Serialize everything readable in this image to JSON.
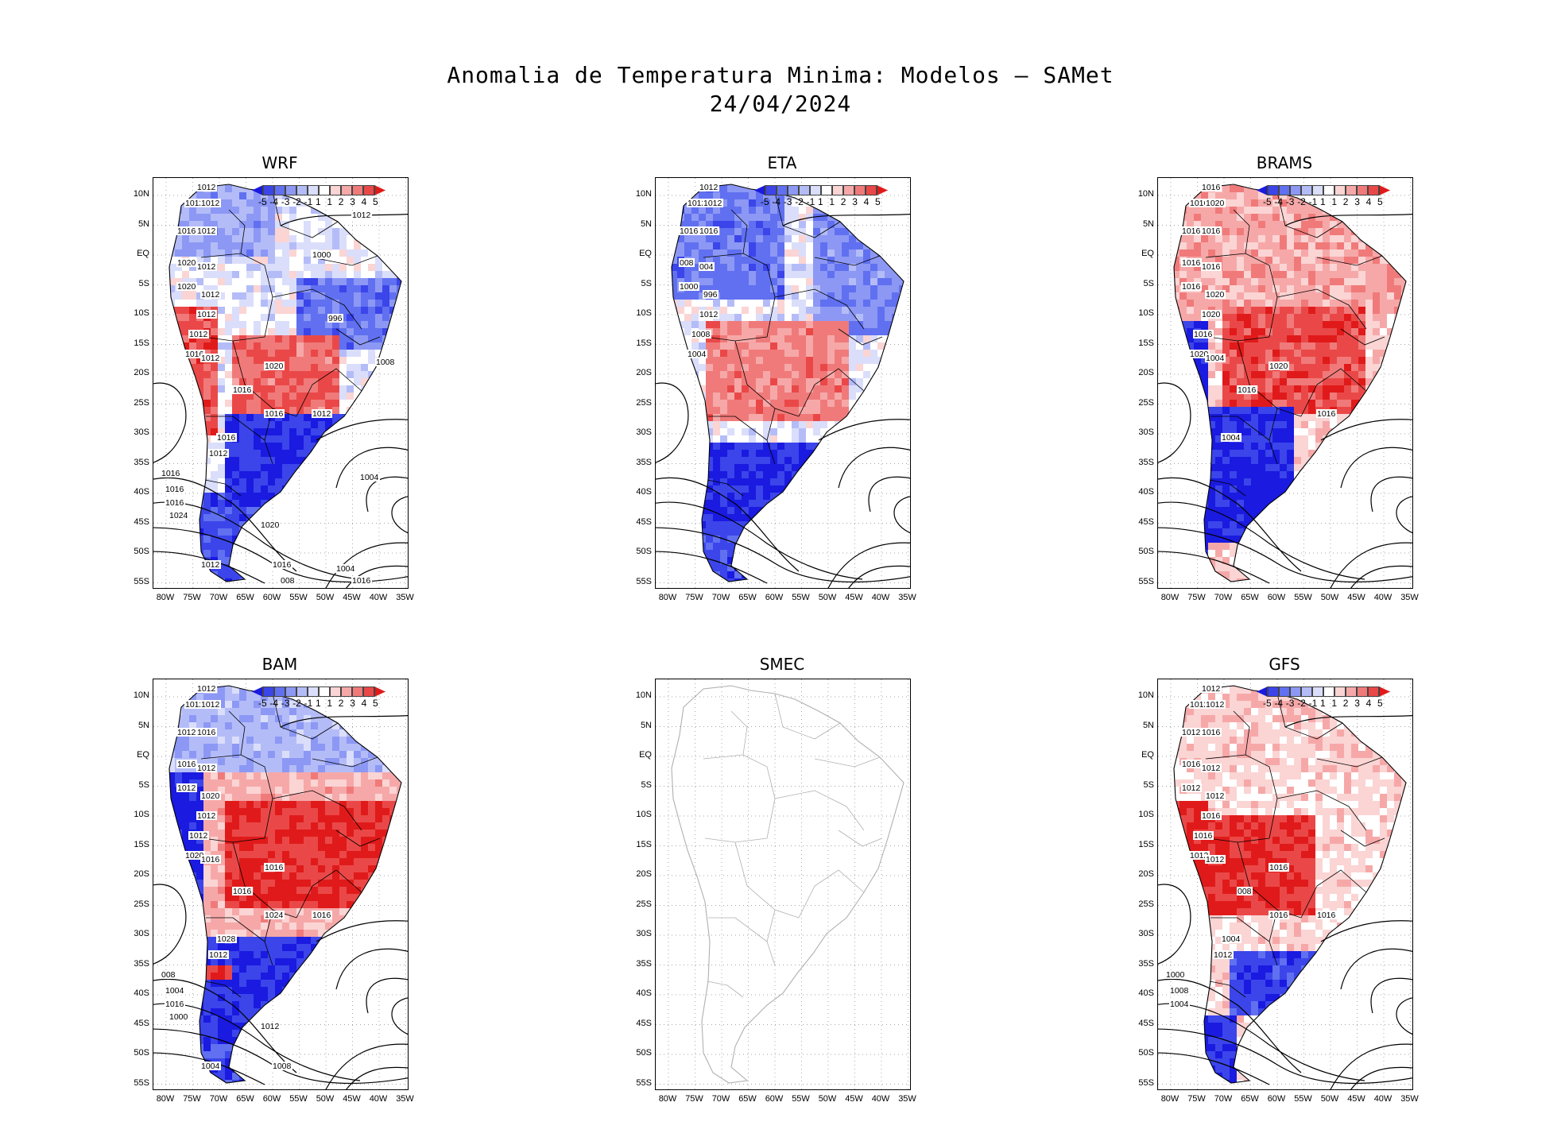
{
  "title_line1": "Anomalia de Temperatura Minima: Modelos — SAMet",
  "title_line2": "24/04/2024",
  "lat_labels": [
    "10N",
    "5N",
    "EQ",
    "5S",
    "10S",
    "15S",
    "20S",
    "25S",
    "30S",
    "35S",
    "40S",
    "45S",
    "50S",
    "55S"
  ],
  "lon_labels": [
    "80W",
    "75W",
    "70W",
    "65W",
    "60W",
    "55W",
    "50W",
    "45W",
    "40W",
    "35W"
  ],
  "colorbar": {
    "labels": [
      "-5",
      "-4",
      "-3",
      "-2",
      "-1",
      "1",
      "1",
      "2",
      "3",
      "4",
      "5"
    ],
    "colors": [
      "#1a1ae0",
      "#3b45ea",
      "#6070f0",
      "#8c98f4",
      "#b4bcf8",
      "#dadefb",
      "#ffffff",
      "#fbd4d4",
      "#f6a8a8",
      "#f07a7a",
      "#ea4848",
      "#e01a1a"
    ]
  },
  "panels": [
    {
      "id": "wrf",
      "title": "WRF",
      "has_data": true,
      "isobars": [
        "1012",
        "1012",
        "1012",
        "1016",
        "1012",
        "1020",
        "1012",
        "1020",
        "1012",
        "1012",
        "1012",
        "1016",
        "1012",
        "1012",
        "1020",
        "1016",
        "1016",
        "1016",
        "1012",
        "1016",
        "1016",
        "1016",
        "1024",
        "1020",
        "1016",
        "1012",
        "008",
        "1004",
        "1016",
        "1000",
        "1012",
        "996",
        "1008",
        "1004"
      ]
    },
    {
      "id": "eta",
      "title": "ETA",
      "has_data": true,
      "isobars": [
        "1012",
        "1012",
        "1012",
        "1016",
        "1016",
        "008",
        "004",
        "1000",
        "996",
        "1012",
        "1008",
        "1004"
      ]
    },
    {
      "id": "brams",
      "title": "BRAMS",
      "has_data": true,
      "isobars": [
        "1016",
        "1016",
        "1020",
        "1016",
        "1016",
        "1016",
        "1016",
        "1016",
        "1020",
        "1020",
        "1016",
        "1020",
        "1016",
        "1004",
        "1020",
        "1016",
        "1004"
      ]
    },
    {
      "id": "bam",
      "title": "BAM",
      "has_data": true,
      "isobars": [
        "1012",
        "1012",
        "1012",
        "1012",
        "1016",
        "1016",
        "1012",
        "1012",
        "1020",
        "1012",
        "1012",
        "1020",
        "1016",
        "1016",
        "1016",
        "1016",
        "1028",
        "1024",
        "1012",
        "008",
        "1004",
        "1016",
        "1000",
        "1012",
        "1008",
        "1004"
      ]
    },
    {
      "id": "smec",
      "title": "SMEC",
      "has_data": false,
      "isobars": []
    },
    {
      "id": "gfs",
      "title": "GFS",
      "has_data": true,
      "isobars": [
        "1012",
        "1012",
        "1012",
        "1012",
        "1016",
        "1016",
        "1012",
        "1012",
        "1012",
        "1016",
        "1016",
        "1012",
        "1016",
        "1012",
        "1016",
        "008",
        "1004",
        "1016",
        "1012",
        "1000",
        "1008",
        "1004"
      ]
    }
  ]
}
